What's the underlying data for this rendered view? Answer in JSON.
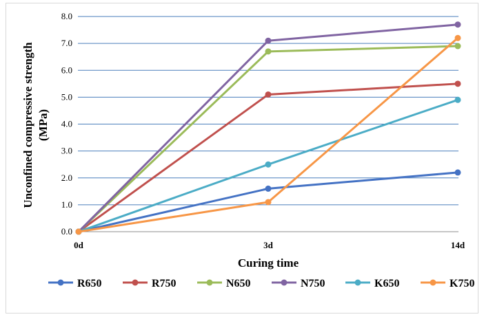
{
  "chart_data": {
    "type": "line",
    "categories": [
      "0d",
      "3d",
      "14d"
    ],
    "xlabel": "Curing time",
    "ylabel_lines": [
      "Unconfined compressive strength",
      "(MPa)"
    ],
    "ylim": [
      0,
      8
    ],
    "yticks": [
      "0.0",
      "1.0",
      "2.0",
      "3.0",
      "4.0",
      "5.0",
      "6.0",
      "7.0",
      "8.0"
    ],
    "grid": true,
    "legend_position": "bottom",
    "series": [
      {
        "name": "R650",
        "color": "#4472c4",
        "values": [
          0,
          1.6,
          2.2
        ]
      },
      {
        "name": "R750",
        "color": "#c0504d",
        "values": [
          0,
          5.1,
          5.5
        ]
      },
      {
        "name": "N650",
        "color": "#9bbb59",
        "values": [
          0,
          6.7,
          6.9
        ]
      },
      {
        "name": "N750",
        "color": "#8064a2",
        "values": [
          0,
          7.1,
          7.7
        ]
      },
      {
        "name": "K650",
        "color": "#4bacc6",
        "values": [
          0,
          2.5,
          4.9
        ]
      },
      {
        "name": "K750",
        "color": "#f79646",
        "values": [
          0,
          1.1,
          7.2
        ]
      }
    ]
  }
}
